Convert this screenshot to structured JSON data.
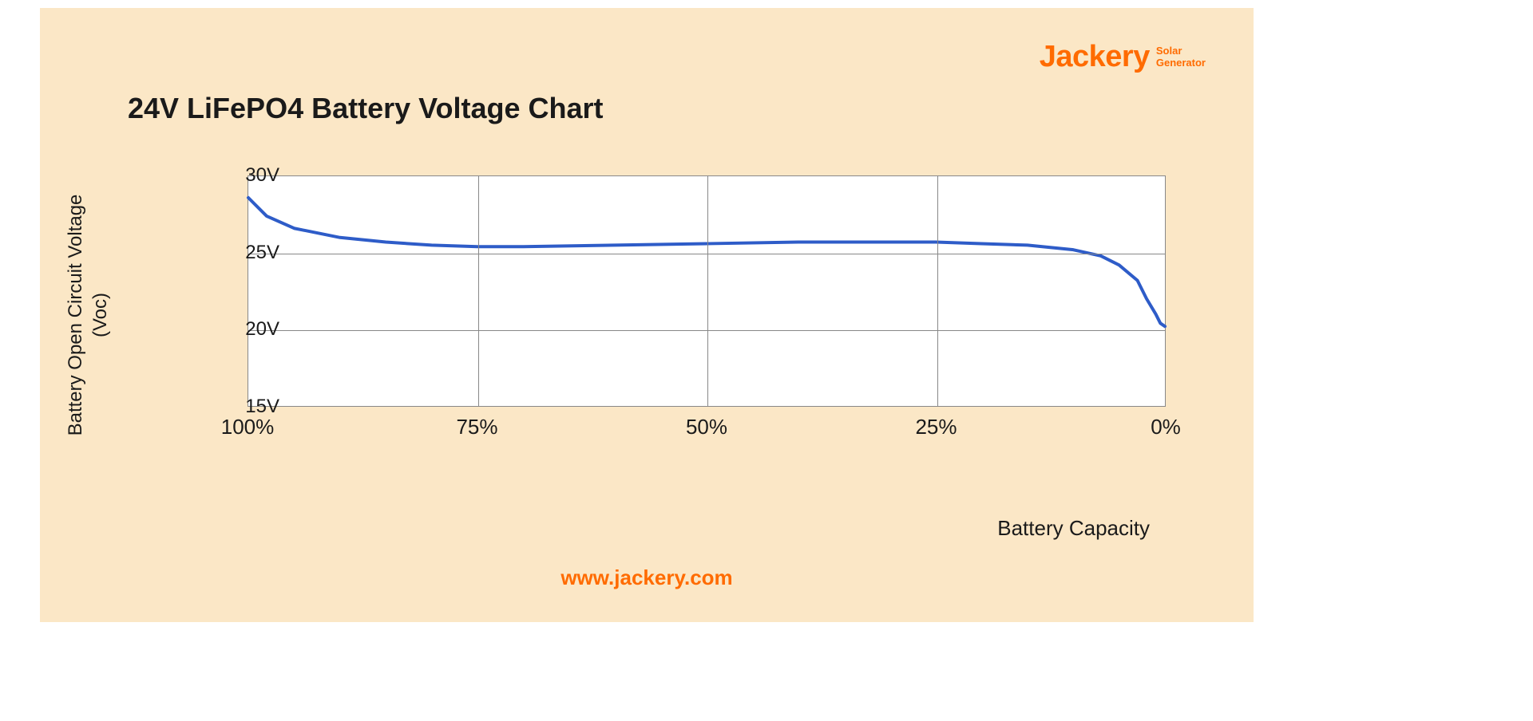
{
  "brand": {
    "name": "Jackery",
    "sub1": "Solar",
    "sub2": "Generator",
    "color": "#ff6b00"
  },
  "title": "24V LiFePO4 Battery Voltage Chart",
  "footer_url": "www.jackery.com",
  "chart": {
    "type": "line",
    "background_color": "#fbe7c6",
    "plot_bg": "#ffffff",
    "grid_color": "#888888",
    "line_color": "#2e5cc8",
    "line_width": 4,
    "ylabel_line1": "Battery Open Circuit Voltage",
    "ylabel_line2": "(Voc)",
    "xlabel": "Battery Capacity",
    "ylim": [
      15,
      30
    ],
    "xlim": [
      100,
      0
    ],
    "yticks": [
      {
        "v": 30,
        "label": "30V"
      },
      {
        "v": 25,
        "label": "25V"
      },
      {
        "v": 20,
        "label": "20V"
      },
      {
        "v": 15,
        "label": "15V"
      }
    ],
    "xticks": [
      {
        "v": 100,
        "label": "100%"
      },
      {
        "v": 75,
        "label": "75%"
      },
      {
        "v": 50,
        "label": "50%"
      },
      {
        "v": 25,
        "label": "25%"
      },
      {
        "v": 0,
        "label": "0%"
      }
    ],
    "series": [
      {
        "x": 100,
        "y": 28.6
      },
      {
        "x": 98,
        "y": 27.4
      },
      {
        "x": 95,
        "y": 26.6
      },
      {
        "x": 90,
        "y": 26.0
      },
      {
        "x": 85,
        "y": 25.7
      },
      {
        "x": 80,
        "y": 25.5
      },
      {
        "x": 75,
        "y": 25.4
      },
      {
        "x": 70,
        "y": 25.4
      },
      {
        "x": 60,
        "y": 25.5
      },
      {
        "x": 50,
        "y": 25.6
      },
      {
        "x": 40,
        "y": 25.7
      },
      {
        "x": 30,
        "y": 25.7
      },
      {
        "x": 25,
        "y": 25.7
      },
      {
        "x": 20,
        "y": 25.6
      },
      {
        "x": 15,
        "y": 25.5
      },
      {
        "x": 10,
        "y": 25.2
      },
      {
        "x": 7,
        "y": 24.8
      },
      {
        "x": 5,
        "y": 24.2
      },
      {
        "x": 3,
        "y": 23.2
      },
      {
        "x": 2,
        "y": 22.0
      },
      {
        "x": 1,
        "y": 21.0
      },
      {
        "x": 0.5,
        "y": 20.4
      },
      {
        "x": 0,
        "y": 20.2
      }
    ],
    "title_fontsize": 36,
    "label_fontsize": 24,
    "tick_fontsize": 24
  }
}
